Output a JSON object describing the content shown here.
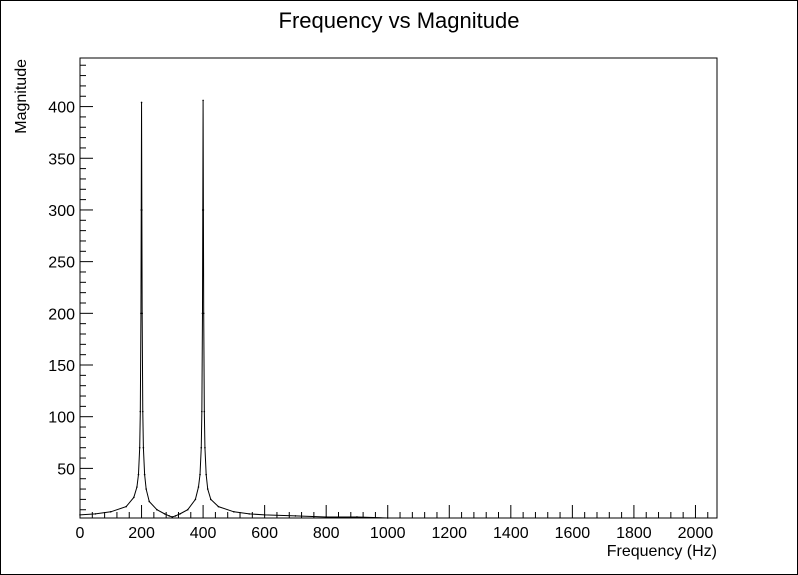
{
  "chart_data": {
    "type": "line",
    "title": "Frequency vs Magnitude",
    "xlabel": "Frequency (Hz)",
    "ylabel": "Magnitude",
    "xlim": [
      0,
      2070
    ],
    "ylim": [
      2,
      447
    ],
    "xticks": [
      0,
      200,
      400,
      600,
      800,
      1000,
      1200,
      1400,
      1600,
      1800,
      2000
    ],
    "xtick_labels": [
      "0",
      "200",
      "400",
      "600",
      "800",
      "1000",
      "1200",
      "1400",
      "1600",
      "1800",
      "2000"
    ],
    "yticks": [
      50,
      100,
      150,
      200,
      250,
      300,
      350,
      400
    ],
    "ytick_labels": [
      "50",
      "100",
      "150",
      "200",
      "250",
      "300",
      "350",
      "400"
    ],
    "grid": false,
    "line_color": "#000000",
    "series": [
      {
        "x": [
          0,
          50,
          100,
          150,
          175,
          185,
          190,
          194,
          196,
          198,
          199,
          200,
          201,
          202,
          204,
          206,
          210,
          215,
          225,
          250,
          275,
          290,
          300,
          310,
          325,
          350,
          375,
          385,
          390,
          394,
          396,
          398,
          399,
          400,
          401,
          402,
          404,
          406,
          410,
          415,
          425,
          450,
          500,
          550,
          600,
          700,
          800,
          900,
          1000
        ],
        "y": [
          5,
          6,
          8,
          13,
          22,
          32,
          44,
          70,
          105,
          200,
          300,
          404,
          300,
          200,
          105,
          70,
          44,
          30,
          18,
          10,
          6,
          4,
          3,
          4,
          6,
          10,
          20,
          32,
          44,
          70,
          105,
          200,
          300,
          406,
          300,
          200,
          105,
          70,
          44,
          30,
          20,
          13,
          8,
          6,
          5,
          4,
          3,
          3,
          2
        ]
      }
    ]
  }
}
